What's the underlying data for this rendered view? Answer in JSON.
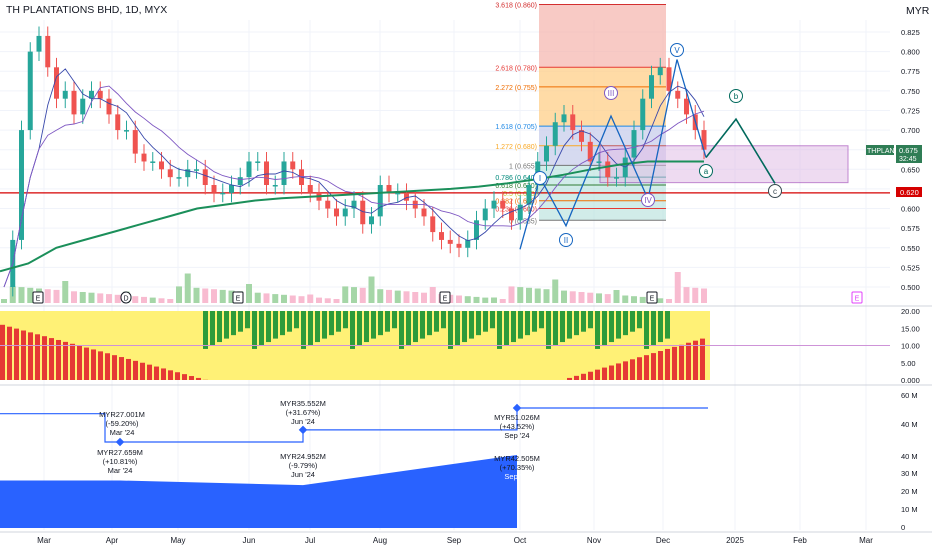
{
  "header": {
    "title": "TH PLANTATIONS BHD, 1D, MYX",
    "currency": "MYR"
  },
  "colors": {
    "up": "#26a69a",
    "down": "#ef5350",
    "ema": "#1b8f5a",
    "ma_fast": "#3949ab",
    "ma_mid": "#7e57c2",
    "support": "#d50000",
    "wave": "#1565c0",
    "wave_proj": "#00695c",
    "box": "#ce93d8",
    "revenue": "#2962ff"
  },
  "price_axis": {
    "ticks": [
      "0.825",
      "0.800",
      "0.775",
      "0.750",
      "0.725",
      "0.700",
      "0.675",
      "0.650",
      "0.625",
      "0.600",
      "0.575",
      "0.550",
      "0.525",
      "0.500"
    ]
  },
  "osc_axis": {
    "ticks": [
      "20.00",
      "15.00",
      "10.00",
      "5.00",
      "0.000"
    ]
  },
  "fund_top_axis": {
    "ticks": [
      "60 M",
      "40 M"
    ]
  },
  "fund_bot_axis": {
    "ticks": [
      "40 M",
      "30 M",
      "20 M",
      "10 M",
      "0"
    ]
  },
  "time_axis": {
    "labels": [
      "Mar",
      "Apr",
      "May",
      "Jun",
      "Jul",
      "Aug",
      "Sep",
      "Oct",
      "Nov",
      "Dec",
      "2025",
      "Feb",
      "Mar"
    ]
  },
  "badges": {
    "ticker": "THPLANT",
    "price": "0.675",
    "timer": "32:45",
    "level": "0.620"
  },
  "fib_levels": [
    {
      "label": "3.618 (0.860)",
      "value": 0.86,
      "color": "#d32f2f"
    },
    {
      "label": "2.618 (0.780)",
      "value": 0.78,
      "color": "#e53935"
    },
    {
      "label": "2.272 (0.755)",
      "value": 0.755,
      "color": "#ef6c00"
    },
    {
      "label": "1.618 (0.705)",
      "value": 0.705,
      "color": "#1e88e5"
    },
    {
      "label": "1.272 (0.680)",
      "value": 0.68,
      "color": "#f9a825"
    },
    {
      "label": "1 (0.655)",
      "value": 0.655,
      "color": "#757575"
    },
    {
      "label": "0.786 (0.640)",
      "value": 0.64,
      "color": "#00897b"
    },
    {
      "label": "0.618 (0.630)",
      "value": 0.63,
      "color": "#2e7d32"
    },
    {
      "label": "0.5 (0.620)",
      "value": 0.62,
      "color": "#c0ca33"
    },
    {
      "label": "0.382 (0.610)",
      "value": 0.61,
      "color": "#ef6c00"
    },
    {
      "label": "0.236 (0.600)",
      "value": 0.6,
      "color": "#e53935"
    },
    {
      "label": "0 (0.585)",
      "value": 0.585,
      "color": "#757575"
    }
  ],
  "wave_labels": [
    "I",
    "II",
    "III",
    "IV",
    "V",
    "a",
    "b",
    "c"
  ],
  "events": [
    "E",
    "D",
    "E",
    "E",
    "E",
    "E"
  ],
  "fundamentals": {
    "top": [
      {
        "value": "MYR27.001M",
        "change": "(-59.20%)",
        "period": "Mar '24"
      },
      {
        "value": "MYR35.552M",
        "change": "(+31.67%)",
        "period": "Jun '24"
      },
      {
        "value": "MYR51.026M",
        "change": "(+43.52%)",
        "period": "Sep '24"
      }
    ],
    "bottom": [
      {
        "value": "MYR27.659M",
        "change": "(+10.81%)",
        "period": "Mar '24"
      },
      {
        "value": "MYR24.952M",
        "change": "(-9.79%)",
        "period": "Jun '24"
      },
      {
        "value": "MYR42.505M",
        "change": "(+70.35%)",
        "period": "Sep '24"
      }
    ]
  },
  "chart_data": {
    "type": "candlestick",
    "title": "TH PLANTATIONS BHD, 1D, MYX",
    "ylim": [
      0.49,
      0.84
    ],
    "close_series": [
      0.5,
      0.56,
      0.7,
      0.8,
      0.82,
      0.78,
      0.74,
      0.75,
      0.72,
      0.74,
      0.75,
      0.74,
      0.72,
      0.7,
      0.7,
      0.67,
      0.66,
      0.66,
      0.65,
      0.64,
      0.64,
      0.65,
      0.65,
      0.63,
      0.62,
      0.62,
      0.63,
      0.64,
      0.66,
      0.66,
      0.63,
      0.63,
      0.66,
      0.65,
      0.63,
      0.62,
      0.61,
      0.6,
      0.59,
      0.6,
      0.61,
      0.58,
      0.59,
      0.63,
      0.62,
      0.62,
      0.61,
      0.6,
      0.59,
      0.57,
      0.56,
      0.555,
      0.55,
      0.56,
      0.585,
      0.6,
      0.61,
      0.6,
      0.585,
      0.605,
      0.63,
      0.66,
      0.68,
      0.71,
      0.72,
      0.7,
      0.685,
      0.66,
      0.66,
      0.64,
      0.64,
      0.665,
      0.7,
      0.74,
      0.77,
      0.78,
      0.75,
      0.74,
      0.72,
      0.7,
      0.675
    ],
    "ema200": [
      0.52,
      0.53,
      0.55,
      0.56,
      0.57,
      0.58,
      0.59,
      0.6,
      0.605,
      0.61,
      0.613,
      0.615,
      0.617,
      0.619,
      0.621,
      0.623,
      0.625,
      0.628,
      0.632,
      0.637,
      0.643,
      0.65,
      0.656,
      0.66,
      0.66,
      0.66
    ],
    "fib_levels": [
      0.585,
      0.6,
      0.61,
      0.62,
      0.63,
      0.64,
      0.655,
      0.68,
      0.705,
      0.755,
      0.78,
      0.86
    ],
    "support": 0.62,
    "last_price": 0.675,
    "osc_ylim": [
      0,
      20
    ],
    "fundamentals_top": [
      27.001,
      35.552,
      51.026
    ],
    "fundamentals_bottom": [
      27.659,
      24.952,
      42.505
    ],
    "periods": [
      "Mar '24",
      "Jun '24",
      "Sep '24"
    ]
  }
}
